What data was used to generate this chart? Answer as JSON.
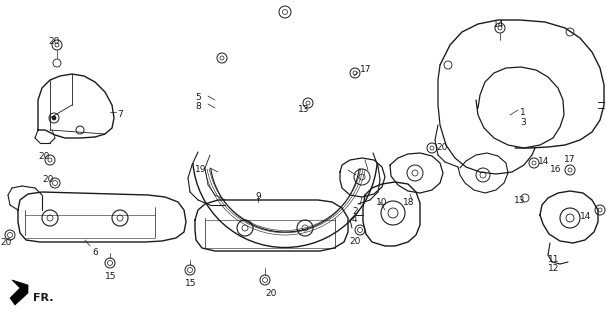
{
  "bg_color": "#ffffff",
  "line_color": "#1a1a1a",
  "font_size": 6.5,
  "figsize": [
    6.07,
    3.2
  ],
  "dpi": 100
}
